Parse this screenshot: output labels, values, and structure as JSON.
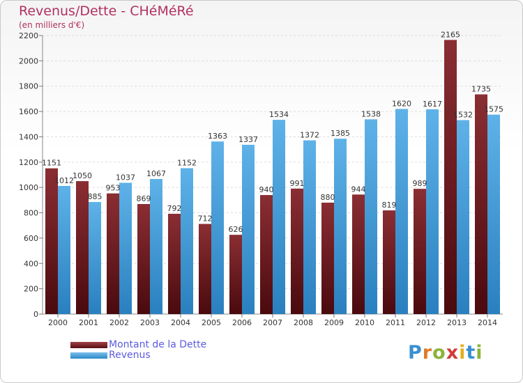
{
  "title": "Revenus/Dette - CHéMéRé",
  "subtitle": "(en milliers d'€)",
  "legend": {
    "debt_label": "Montant de la Dette",
    "revenue_label": "Revenus"
  },
  "logo_text": "Proxiti",
  "colors": {
    "debt": "#7a2328",
    "revenue": "#4aa3df",
    "title": "#b03060",
    "legend_text": "#5b5be0"
  },
  "chart_data": {
    "type": "bar",
    "categories": [
      "2000",
      "2001",
      "2002",
      "2003",
      "2004",
      "2005",
      "2006",
      "2007",
      "2008",
      "2009",
      "2010",
      "2011",
      "2012",
      "2013",
      "2014"
    ],
    "series": [
      {
        "name": "Montant de la Dette",
        "values": [
          1151,
          1050,
          953,
          869,
          792,
          712,
          626,
          940,
          991,
          880,
          944,
          819,
          989,
          2165,
          1735
        ]
      },
      {
        "name": "Revenus",
        "values": [
          1012,
          885,
          1037,
          1067,
          1152,
          1363,
          1337,
          1534,
          1372,
          1385,
          1538,
          1620,
          1617,
          1532,
          1575
        ]
      }
    ],
    "ylim": [
      0,
      2200
    ],
    "yticks": [
      0,
      200,
      400,
      600,
      800,
      1000,
      1200,
      1400,
      1600,
      1800,
      2000,
      2200
    ],
    "grid": true
  }
}
